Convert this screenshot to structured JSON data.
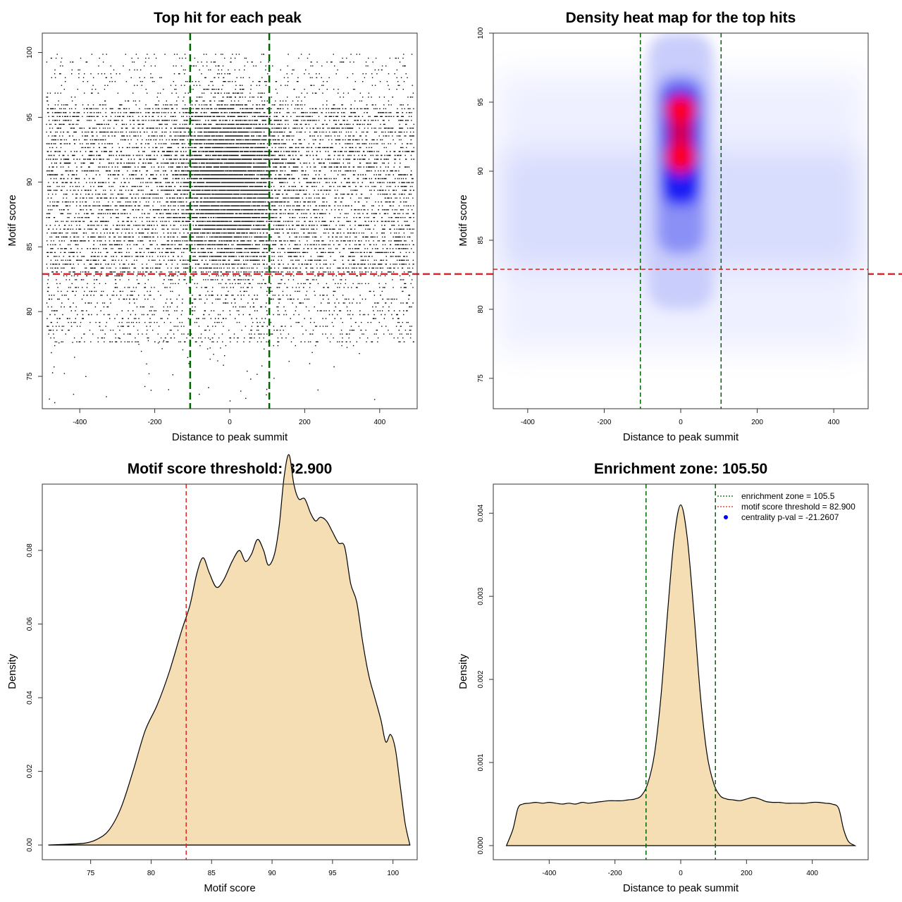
{
  "chart_data": [
    {
      "type": "scatter",
      "title": "Top hit for each peak",
      "xlabel": "Distance to peak summit",
      "ylabel": "Motif score",
      "xlim": [
        -500,
        500
      ],
      "ylim": [
        72.5,
        101.5
      ],
      "xticks": [
        -400,
        -200,
        0,
        200,
        400
      ],
      "yticks": [
        75,
        80,
        85,
        90,
        95,
        100
      ],
      "xtick_labels": [
        "-400",
        "-200",
        "0",
        "200",
        "400"
      ],
      "ytick_labels": [
        "75",
        "80",
        "85",
        "90",
        "95",
        "100"
      ],
      "threshold_score": 82.9,
      "enrichment_zone": [
        -105.5,
        105.5
      ],
      "point_color": "#000000",
      "vline_color": "#006400",
      "hline_color": "#dc2626"
    },
    {
      "type": "heatmap",
      "title": "Density heat map for the top hits",
      "xlabel": "Distance to peak summit",
      "ylabel": "Motif score",
      "xlim": [
        -490,
        490
      ],
      "ylim": [
        72.8,
        100
      ],
      "xticks": [
        -400,
        -200,
        0,
        200,
        400
      ],
      "yticks": [
        75,
        80,
        85,
        90,
        95,
        100
      ],
      "xtick_labels": [
        "-400",
        "-200",
        "0",
        "200",
        "400"
      ],
      "ytick_labels": [
        "75",
        "80",
        "85",
        "90",
        "95",
        "100"
      ],
      "threshold_score": 82.9,
      "enrichment_zone": [
        -105.5,
        105.5
      ],
      "hotspots": [
        {
          "x": 0,
          "y": 94.5,
          "level": "high"
        },
        {
          "x": 0,
          "y": 91,
          "level": "high"
        }
      ],
      "colors": {
        "low": "#ffffff",
        "mid": "#0000ff",
        "high": "#ff0000"
      }
    },
    {
      "type": "area",
      "title": "Motif score threshold: 82.900",
      "xlabel": "Motif score",
      "ylabel": "Density",
      "xlim": [
        71,
        102
      ],
      "ylim": [
        -0.004,
        0.098
      ],
      "xticks": [
        75,
        80,
        85,
        90,
        95,
        100
      ],
      "yticks": [
        0.0,
        0.02,
        0.04,
        0.06,
        0.08
      ],
      "xtick_labels": [
        "75",
        "80",
        "85",
        "90",
        "95",
        "100"
      ],
      "ytick_labels": [
        "0.00",
        "0.02",
        "0.04",
        "0.06",
        "0.08"
      ],
      "threshold": 82.9,
      "fill_color": "#f5deb3",
      "x": [
        71.5,
        73,
        74.5,
        75.5,
        76.5,
        77.5,
        78.5,
        79.5,
        80.5,
        81.5,
        82.5,
        83.2,
        83.8,
        84.3,
        84.8,
        85.4,
        86,
        86.7,
        87.3,
        87.8,
        88.3,
        88.8,
        89.3,
        89.7,
        90.2,
        90.6,
        91,
        91.4,
        91.8,
        92.2,
        92.7,
        93.2,
        93.6,
        94,
        94.5,
        95,
        95.5,
        96,
        96.5,
        97,
        97.5,
        98,
        98.5,
        99,
        99.4,
        99.8,
        100.2,
        100.6,
        101,
        101.4
      ],
      "y": [
        0.0,
        0.0002,
        0.0005,
        0.0015,
        0.004,
        0.01,
        0.02,
        0.031,
        0.038,
        0.047,
        0.058,
        0.065,
        0.074,
        0.078,
        0.074,
        0.07,
        0.072,
        0.077,
        0.08,
        0.077,
        0.079,
        0.083,
        0.08,
        0.076,
        0.079,
        0.087,
        0.1,
        0.106,
        0.098,
        0.094,
        0.094,
        0.09,
        0.088,
        0.089,
        0.088,
        0.085,
        0.082,
        0.081,
        0.071,
        0.066,
        0.055,
        0.046,
        0.04,
        0.034,
        0.028,
        0.03,
        0.026,
        0.016,
        0.006,
        0.0
      ]
    },
    {
      "type": "area",
      "title": "Enrichment zone: 105.50",
      "xlabel": "Distance to peak summit",
      "ylabel": "Density",
      "xlim": [
        -570,
        570
      ],
      "ylim": [
        -0.00017,
        0.00435
      ],
      "xticks": [
        -400,
        -200,
        0,
        200,
        400
      ],
      "yticks": [
        0.0,
        0.001,
        0.002,
        0.003,
        0.004
      ],
      "xtick_labels": [
        "-400",
        "-200",
        "0",
        "200",
        "400"
      ],
      "ytick_labels": [
        "0.000",
        "0.001",
        "0.002",
        "0.003",
        "0.004"
      ],
      "enrichment_zone": [
        -105.5,
        105.5
      ],
      "fill_color": "#f5deb3",
      "x": [
        -530,
        -510,
        -495,
        -480,
        -460,
        -440,
        -420,
        -400,
        -380,
        -360,
        -340,
        -320,
        -300,
        -280,
        -260,
        -240,
        -220,
        -200,
        -180,
        -160,
        -140,
        -120,
        -100,
        -80,
        -60,
        -40,
        -20,
        0,
        20,
        40,
        60,
        80,
        100,
        120,
        140,
        160,
        180,
        200,
        220,
        240,
        260,
        280,
        300,
        320,
        340,
        360,
        380,
        400,
        420,
        440,
        460,
        480,
        495,
        510,
        530
      ],
      "y": [
        0.0,
        0.0002,
        0.00045,
        0.0005,
        0.00051,
        0.00052,
        0.00051,
        0.00052,
        0.00051,
        0.0005,
        0.00051,
        0.0005,
        0.00052,
        0.00051,
        0.00052,
        0.00053,
        0.00054,
        0.00054,
        0.00054,
        0.00055,
        0.00056,
        0.0006,
        0.00075,
        0.0011,
        0.0018,
        0.0028,
        0.0037,
        0.0041,
        0.0037,
        0.0028,
        0.0018,
        0.0011,
        0.00075,
        0.0006,
        0.00056,
        0.00055,
        0.00054,
        0.00056,
        0.00058,
        0.00056,
        0.00053,
        0.00052,
        0.00052,
        0.00051,
        0.00051,
        0.00051,
        0.00051,
        0.00052,
        0.00052,
        0.00051,
        0.0005,
        0.00045,
        0.0002,
        5e-05,
        0.0
      ]
    }
  ],
  "legend": {
    "items": [
      {
        "label": "enrichment zone = 105.5",
        "kind": "dotted-line",
        "color": "#006400"
      },
      {
        "label": "motif score threshold = 82.900",
        "kind": "dotted-line",
        "color": "#dc2626"
      },
      {
        "label": "centrality p-val = -21.2607",
        "kind": "dot",
        "color": "#0000ff"
      }
    ]
  }
}
